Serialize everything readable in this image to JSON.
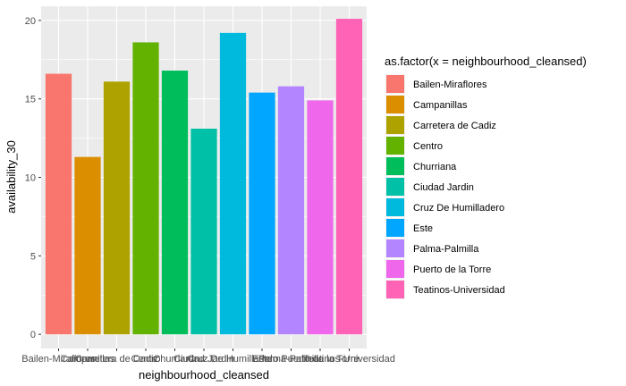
{
  "chart_data": {
    "type": "bar",
    "xlabel": "neighbourhood_cleansed",
    "ylabel": "availability_30",
    "ylim": [
      -0.9,
      20.9
    ],
    "yticks": [
      0,
      5,
      10,
      15,
      20
    ],
    "grid": true,
    "legend_title": "as.factor(x = neighbourhood_cleansed)",
    "legend_position": "right",
    "categories": [
      "Bailen-Miraflores",
      "Campanillas",
      "Carretera de Cadiz",
      "Centro",
      "Churriana",
      "Ciudad Jardin",
      "Cruz De Humilladero",
      "Este",
      "Palma-Palmilla",
      "Puerto de la Torre",
      "Teatinos-Universidad"
    ],
    "values": [
      16.6,
      11.3,
      16.1,
      18.6,
      16.8,
      13.1,
      19.2,
      15.4,
      15.8,
      14.9,
      20.1
    ],
    "colors": [
      "#F8766D",
      "#DB8E00",
      "#AEA200",
      "#64B200",
      "#00BD5C",
      "#00C1A7",
      "#00BADE",
      "#00A6FF",
      "#B385FF",
      "#EF67EB",
      "#FF63B6"
    ],
    "panel_background": "#EBEBEB",
    "gridline_color": "#FFFFFF"
  }
}
